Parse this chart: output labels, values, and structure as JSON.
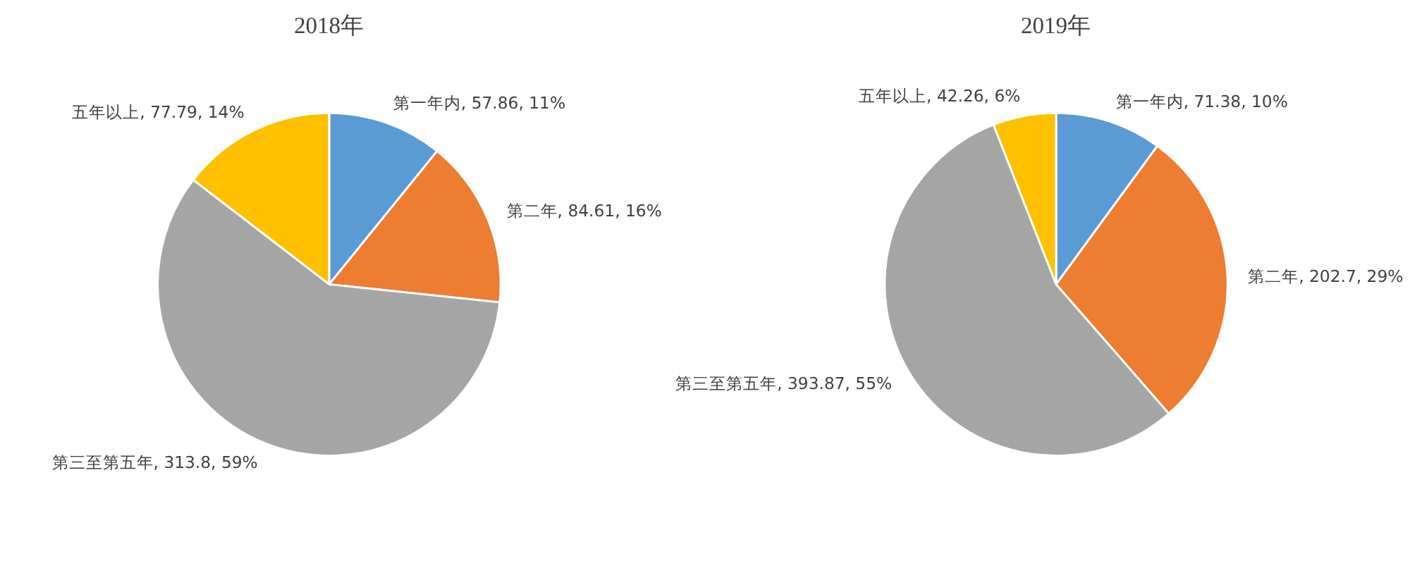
{
  "chart_data": [
    {
      "type": "pie",
      "title": "2018年",
      "categories": [
        "第一年内",
        "第二年",
        "第三至第五年",
        "五年以上"
      ],
      "values": [
        57.86,
        84.61,
        313.8,
        77.79
      ],
      "value_labels": [
        "57.86, 11%",
        "84.61, 16%",
        "313.8, 59%",
        "77.79, 14%"
      ],
      "colors": [
        "#5b9bd5",
        "#ed7d31",
        "#a5a5a5",
        "#ffc000"
      ]
    },
    {
      "type": "pie",
      "title": "2019年",
      "categories": [
        "第一年内",
        "第二年",
        "第三至第五年",
        "五年以上"
      ],
      "values": [
        71.38,
        202.7,
        393.87,
        42.26
      ],
      "value_labels": [
        "71.38, 10%",
        "202.7, 29%",
        "393.87, 55%",
        "42.26, 6%"
      ],
      "colors": [
        "#5b9bd5",
        "#ed7d31",
        "#a5a5a5",
        "#ffc000"
      ]
    }
  ]
}
